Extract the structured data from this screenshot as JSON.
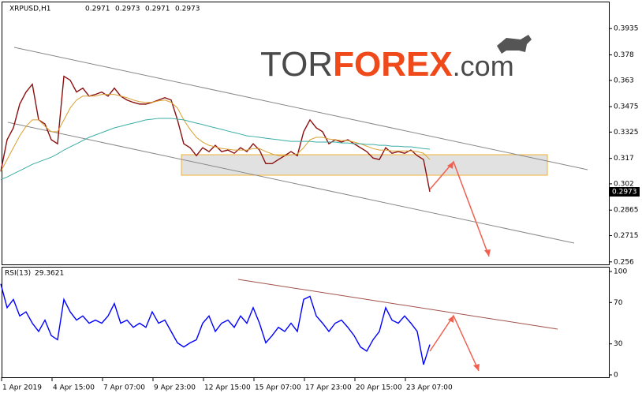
{
  "watermark": {
    "brand_start": "TOR",
    "brand_main": "FOREX",
    "domain": ".com"
  },
  "chart_data": [
    {
      "type": "line",
      "title": "XRPUSD,H1",
      "ohlc": [
        0.2971,
        0.2973,
        0.2971,
        0.2973
      ],
      "ylim": [
        0.2545,
        0.4085
      ],
      "yticks": [
        0.3935,
        0.378,
        0.363,
        0.3475,
        0.3325,
        0.317,
        0.302,
        0.2865,
        0.2715,
        0.256
      ],
      "series": [
        {
          "name": "XRPUSD",
          "color": "#8b1010",
          "values": [
            0.3093,
            0.328,
            0.335,
            0.349,
            0.3561,
            0.3607,
            0.3397,
            0.3373,
            0.328,
            0.3256,
            0.3654,
            0.3631,
            0.3561,
            0.3584,
            0.3537,
            0.3547,
            0.3561,
            0.3537,
            0.3584,
            0.3537,
            0.3514,
            0.35,
            0.349,
            0.349,
            0.35,
            0.3514,
            0.3528,
            0.3514,
            0.3397,
            0.3256,
            0.3233,
            0.3186,
            0.3233,
            0.321,
            0.3247,
            0.321,
            0.3219,
            0.32,
            0.3233,
            0.321,
            0.3256,
            0.3219,
            0.3139,
            0.3139,
            0.3163,
            0.3186,
            0.321,
            0.3186,
            0.3327,
            0.3397,
            0.335,
            0.3327,
            0.3256,
            0.328,
            0.3266,
            0.328,
            0.3256,
            0.3233,
            0.321,
            0.3172,
            0.3163,
            0.3233,
            0.32,
            0.321,
            0.32,
            0.3219,
            0.3186,
            0.3163,
            0.2973
          ]
        },
        {
          "name": "MA fast",
          "color": "#d9a030",
          "values": [
            0.3093,
            0.3163,
            0.3233,
            0.3303,
            0.3359,
            0.3397,
            0.3397,
            0.3359,
            0.3327,
            0.3327,
            0.3397,
            0.3467,
            0.3514,
            0.3537,
            0.3537,
            0.3537,
            0.3547,
            0.3547,
            0.3547,
            0.3537,
            0.3528,
            0.3514,
            0.3504,
            0.35,
            0.35,
            0.3509,
            0.3514,
            0.35,
            0.3467,
            0.3397,
            0.3341,
            0.3294,
            0.3266,
            0.3247,
            0.3238,
            0.3228,
            0.3224,
            0.3219,
            0.3219,
            0.3219,
            0.3228,
            0.3228,
            0.321,
            0.3196,
            0.3186,
            0.3186,
            0.3191,
            0.3196,
            0.3233,
            0.328,
            0.3294,
            0.3294,
            0.3284,
            0.328,
            0.3275,
            0.3275,
            0.3266,
            0.3256,
            0.3242,
            0.3228,
            0.3219,
            0.3219,
            0.3214,
            0.3214,
            0.3214,
            0.3214,
            0.321,
            0.32,
            0.3163
          ]
        },
        {
          "name": "MA slow",
          "color": "#3aaea4",
          "values": [
            0.3046,
            0.306,
            0.3079,
            0.3097,
            0.3116,
            0.3135,
            0.3149,
            0.3163,
            0.3177,
            0.3196,
            0.3219,
            0.3238,
            0.3256,
            0.3275,
            0.3294,
            0.3308,
            0.3322,
            0.3336,
            0.335,
            0.3359,
            0.3369,
            0.3378,
            0.3387,
            0.3397,
            0.3401,
            0.3406,
            0.3406,
            0.3406,
            0.3401,
            0.3397,
            0.3387,
            0.3378,
            0.3369,
            0.3359,
            0.335,
            0.3341,
            0.3331,
            0.3322,
            0.3313,
            0.3303,
            0.3299,
            0.3294,
            0.3289,
            0.3284,
            0.328,
            0.3275,
            0.327,
            0.327,
            0.327,
            0.327,
            0.3266,
            0.3266,
            0.3266,
            0.3266,
            0.3261,
            0.3261,
            0.3256,
            0.3256,
            0.3252,
            0.3252,
            0.3247,
            0.3247,
            0.3242,
            0.3242,
            0.3238,
            0.3238,
            0.3233,
            0.3228,
            0.3224
          ]
        }
      ]
    },
    {
      "type": "line",
      "title": "RSI(13)",
      "categories": [
        "1 Apr 2019",
        null,
        null,
        null,
        null,
        null,
        null,
        null,
        "4 Apr 15:00",
        null,
        null,
        null,
        null,
        null,
        null,
        null,
        "7 Apr 07:00",
        null,
        null,
        null,
        null,
        null,
        null,
        null,
        "9 Apr 23:00",
        null,
        null,
        null,
        null,
        null,
        null,
        null,
        "12 Apr 15:00",
        null,
        null,
        null,
        null,
        null,
        null,
        null,
        "15 Apr 07:00",
        null,
        null,
        null,
        null,
        null,
        null,
        null,
        "17 Apr 23:00",
        null,
        null,
        null,
        null,
        null,
        null,
        null,
        "20 Apr 15:00",
        null,
        null,
        null,
        null,
        null,
        null,
        null,
        "23 Apr 07:00",
        null,
        null,
        null,
        null
      ],
      "ylim": [
        0,
        100
      ],
      "yticks": [
        100,
        70,
        30,
        0
      ],
      "series": [
        {
          "name": "RSI",
          "color": "#0000ff",
          "values": [
            88,
            65,
            73,
            57,
            61,
            50,
            42,
            53,
            38,
            34,
            73,
            61,
            53,
            57,
            50,
            53,
            50,
            57,
            69,
            50,
            53,
            46,
            50,
            46,
            61,
            50,
            53,
            42,
            31,
            27,
            31,
            34,
            50,
            57,
            42,
            50,
            53,
            46,
            57,
            50,
            65,
            50,
            31,
            38,
            46,
            42,
            50,
            42,
            73,
            76,
            57,
            50,
            42,
            50,
            53,
            46,
            38,
            27,
            23,
            34,
            42,
            65,
            53,
            50,
            57,
            50,
            42,
            10,
            29.3621
          ]
        }
      ]
    }
  ]
}
